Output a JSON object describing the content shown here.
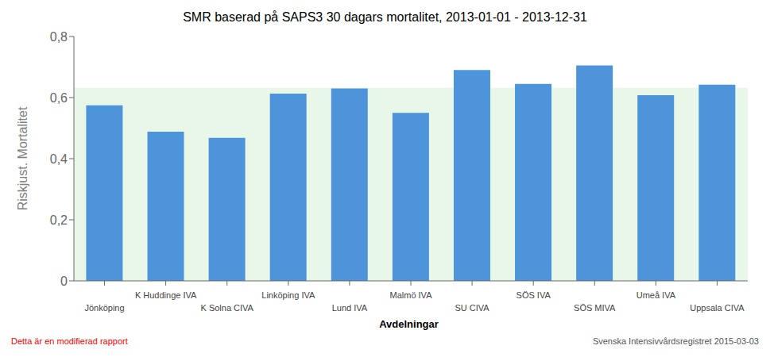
{
  "chart_data": {
    "type": "bar",
    "title": "SMR baserad på SAPS3 30 dagars mortalitet, 2013-01-01 - 2013-12-31",
    "xlabel": "Avdelningar",
    "ylabel": "Riskjust. Mortalitet",
    "categories": [
      "Jönköping",
      "K Huddinge IVA",
      "K Solna CIVA",
      "Linköping IVA",
      "Lund IVA",
      "Malmö IVA",
      "SU CIVA",
      "SÖS IVA",
      "SÖS MIVA",
      "Umeå IVA",
      "Uppsala CIVA"
    ],
    "values": [
      0.575,
      0.488,
      0.468,
      0.613,
      0.63,
      0.55,
      0.69,
      0.645,
      0.705,
      0.608,
      0.642
    ],
    "color": "#4d94db",
    "ylim": [
      0,
      0.8
    ],
    "yticks": [
      0,
      {
        "value": 0.2,
        "label": "0,2"
      },
      {
        "value": 0.4,
        "label": "0,4"
      },
      {
        "value": 0.6,
        "label": "0,6"
      },
      {
        "value": 0.8,
        "label": "0,8"
      }
    ],
    "grid": false,
    "reference_band": {
      "values": [
        0,
        0.632
      ],
      "color": "#e8f7e8"
    },
    "annotations": [
      {
        "text": "Detta är en modifierad rapport",
        "color": "red"
      },
      {
        "text": "Svenska Intensivvårdsregistret 2015-03-03",
        "color": "#555555"
      }
    ]
  }
}
